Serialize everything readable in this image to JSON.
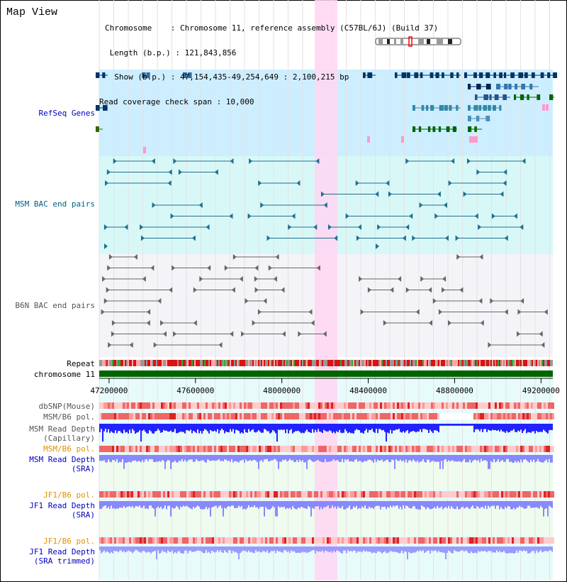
{
  "view_title": "Map View",
  "info": {
    "chromosome": "Chromosome    : Chromosome 11, reference assembly (C57BL/6J) (Build 37)",
    "length": " Length (b.p.) : 121,843,856",
    "show": "  Show (b.p.) : 47,154,435-49,254,649 : 2,100,215 bp",
    "coverage": "Read coverage check span : 10,000"
  },
  "tracks": {
    "refseq": "RefSeq Genes",
    "msm_bac": "MSM BAC end pairs",
    "b6n_bac": "B6N BAC end pairs",
    "repeat": "Repeat",
    "chromosome": "chromosome 11",
    "dbsnp": "dbSNP(Mouse)",
    "msm_b6_pol_1": "MSM/B6 pol.",
    "msm_read_depth_cap_1": "MSM Read Depth",
    "msm_read_depth_cap_2": "(Capillary)",
    "msm_b6_pol_2": "MSM/B6 pol.",
    "msm_read_depth_sra_1": "MSM Read Depth",
    "msm_read_depth_sra_2": "(SRA)",
    "jf1_b6_pol_1": "JF1/B6 pol.",
    "jf1_read_depth_sra_1": "JF1 Read Depth",
    "jf1_read_depth_sra_2": "(SRA)",
    "jf1_b6_pol_2": "JF1/B6 pol.",
    "jf1_read_depth_trim_1": "JF1 Read Depth",
    "jf1_read_depth_trim_2": "(SRA trimmed)"
  },
  "axis": {
    "ticks": [
      "47200000",
      "47600000",
      "48000000",
      "48400000",
      "48800000",
      "49200000"
    ],
    "tick_values": [
      47200000,
      47600000,
      48000000,
      48400000,
      48800000,
      49200000
    ],
    "range": [
      47154435,
      49254649
    ]
  },
  "colors": {
    "label_blue": "#0000c0",
    "label_teal": "#005f80",
    "label_gray": "#555555",
    "label_orange": "#e09000",
    "refseq_bg": "#cdeeff",
    "msm_bg": "#d8f8f8",
    "highlight": "#ffd6f2",
    "chrom_green": "#006400",
    "capillary_depth": "#2222ff",
    "sra_depth": "#8888ff"
  }
}
